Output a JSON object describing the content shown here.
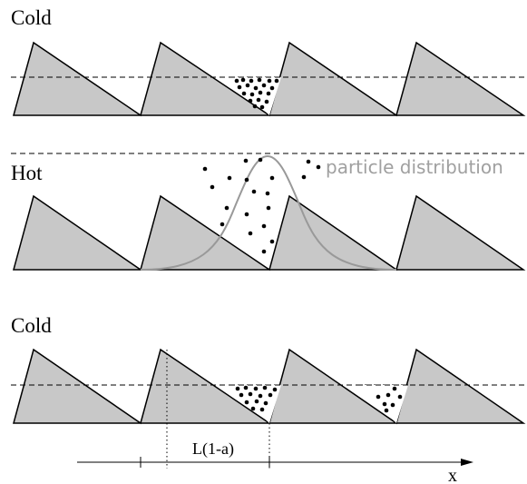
{
  "panels": {
    "top_label": "Cold",
    "middle_label": "Hot",
    "bottom_label": "Cold"
  },
  "annotations": {
    "distribution_label": "particle distribution",
    "period_label": "L(1-a)",
    "axis_label": "x"
  },
  "colors": {
    "ratchet_fill": "#c8c8c8",
    "ratchet_stroke": "#000000",
    "distribution_curve": "#999999",
    "distribution_text": "#a0a0a0",
    "particles": "#000000"
  }
}
